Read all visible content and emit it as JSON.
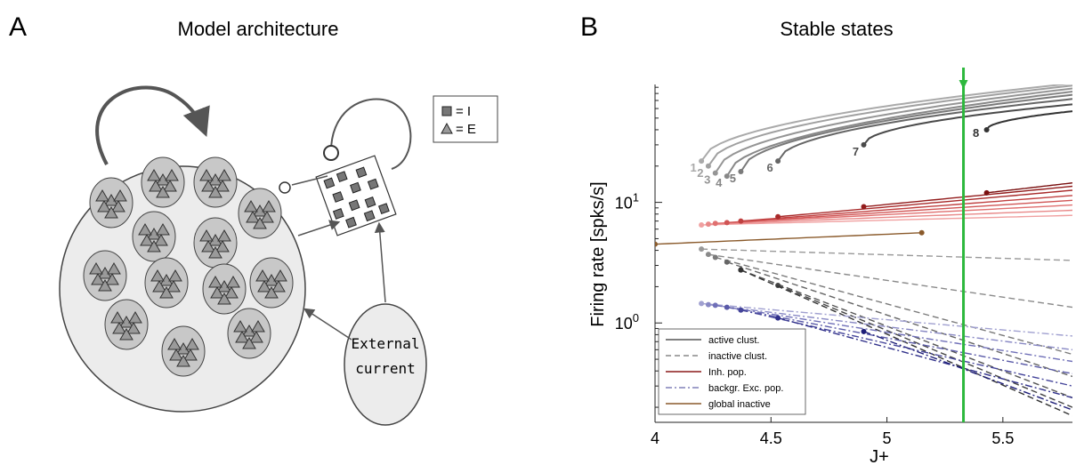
{
  "panel_a": {
    "letter": "A",
    "title": "Model architecture",
    "legend": {
      "inhibitory": "= I",
      "excitatory": "= E"
    },
    "external_label_line1": "External",
    "external_label_line2": "current"
  },
  "chart_data": {
    "type": "line",
    "panel_letter": "B",
    "title": "Stable states",
    "xlabel": "J+",
    "ylabel": "Firing rate [spks/s]",
    "xlim": [
      4,
      5.8
    ],
    "ylim": [
      0.15,
      95
    ],
    "yscale": "log",
    "x_ticks": [
      "4",
      "4.5",
      "5",
      "5.5"
    ],
    "y_ticks": [
      {
        "base": "10",
        "exp": "0"
      },
      {
        "base": "10",
        "exp": "1"
      }
    ],
    "marker_x": 5.33,
    "marker_color": "#2db83d",
    "legend_position": "bottom-left",
    "legend": [
      {
        "label": "active clust.",
        "style": "solid",
        "color": "#555555"
      },
      {
        "label": "inactive clust.",
        "style": "dashed",
        "color": "#888888"
      },
      {
        "label": "Inh. pop.",
        "style": "solid",
        "color": "#8b1a1a"
      },
      {
        "label": "backgr. Exc. pop.",
        "style": "dashdot",
        "color": "#8080b8"
      },
      {
        "label": "global inactive",
        "style": "solid",
        "color": "#8a5a2b"
      }
    ],
    "series": [
      {
        "label": "1",
        "group": "active",
        "color": "#aaaaaa",
        "start": [
          4.2,
          22
        ],
        "end": [
          5.8,
          97
        ]
      },
      {
        "label": "2",
        "group": "active",
        "color": "#a0a0a0",
        "start": [
          4.23,
          20
        ],
        "end": [
          5.8,
          93
        ]
      },
      {
        "label": "3",
        "group": "active",
        "color": "#959595",
        "start": [
          4.26,
          17.5
        ],
        "end": [
          5.8,
          88
        ]
      },
      {
        "label": "4",
        "group": "active",
        "color": "#888888",
        "start": [
          4.31,
          16.5
        ],
        "end": [
          5.8,
          83
        ]
      },
      {
        "label": "5",
        "group": "active",
        "color": "#7a7a7a",
        "start": [
          4.37,
          18
        ],
        "end": [
          5.8,
          78
        ]
      },
      {
        "label": "6",
        "group": "active",
        "color": "#666666",
        "start": [
          4.53,
          22
        ],
        "end": [
          5.8,
          72
        ]
      },
      {
        "label": "7",
        "group": "active",
        "color": "#4a4a4a",
        "start": [
          4.9,
          30
        ],
        "end": [
          5.8,
          65
        ]
      },
      {
        "label": "8",
        "group": "active",
        "color": "#333333",
        "start": [
          5.43,
          40
        ],
        "end": [
          5.8,
          57
        ]
      },
      {
        "group": "inh",
        "color": "#f0a0a0",
        "start": [
          4.2,
          6.5
        ],
        "end": [
          5.8,
          7.8
        ]
      },
      {
        "group": "inh",
        "color": "#e88888",
        "start": [
          4.23,
          6.6
        ],
        "end": [
          5.8,
          8.6
        ]
      },
      {
        "group": "inh",
        "color": "#e07070",
        "start": [
          4.26,
          6.7
        ],
        "end": [
          5.8,
          9.5
        ]
      },
      {
        "group": "inh",
        "color": "#d05555",
        "start": [
          4.31,
          6.8
        ],
        "end": [
          5.8,
          10.4
        ]
      },
      {
        "group": "inh",
        "color": "#c04040",
        "start": [
          4.37,
          7.0
        ],
        "end": [
          5.8,
          11.4
        ]
      },
      {
        "group": "inh",
        "color": "#a82a2a",
        "start": [
          4.53,
          7.6
        ],
        "end": [
          5.8,
          12.6
        ]
      },
      {
        "group": "inh",
        "color": "#921c1c",
        "start": [
          4.9,
          9.2
        ],
        "end": [
          5.8,
          13.6
        ]
      },
      {
        "group": "inh",
        "color": "#7a1010",
        "start": [
          5.43,
          12
        ],
        "end": [
          5.8,
          14.5
        ]
      },
      {
        "group": "global",
        "color": "#8a5a2b",
        "start": [
          4.0,
          4.5
        ],
        "end": [
          5.15,
          5.6
        ]
      },
      {
        "group": "inactive",
        "color": "#999999",
        "start": [
          4.2,
          4.1
        ],
        "end": [
          5.8,
          3.3
        ]
      },
      {
        "group": "inactive",
        "color": "#8a8a8a",
        "start": [
          4.23,
          3.7
        ],
        "end": [
          5.8,
          1.35
        ]
      },
      {
        "group": "inactive",
        "color": "#7a7a7a",
        "start": [
          4.26,
          3.5
        ],
        "end": [
          5.8,
          0.55
        ]
      },
      {
        "group": "inactive",
        "color": "#666666",
        "start": [
          4.31,
          3.2
        ],
        "end": [
          5.8,
          0.36
        ]
      },
      {
        "group": "inactive",
        "color": "#555555",
        "start": [
          4.37,
          2.75
        ],
        "end": [
          5.8,
          0.24
        ]
      },
      {
        "group": "inactive",
        "color": "#444444",
        "start": [
          4.53,
          2.05
        ],
        "end": [
          5.8,
          0.2
        ]
      },
      {
        "group": "inactive",
        "color": "#333333",
        "start": [
          4.37,
          2.75
        ],
        "end": [
          5.8,
          0.17
        ]
      },
      {
        "group": "backgr",
        "color": "#a0a0d0",
        "start": [
          4.2,
          1.45
        ],
        "end": [
          5.8,
          0.78
        ]
      },
      {
        "group": "backgr",
        "color": "#8888c4",
        "start": [
          4.23,
          1.42
        ],
        "end": [
          5.8,
          0.6
        ]
      },
      {
        "group": "backgr",
        "color": "#7070b8",
        "start": [
          4.26,
          1.4
        ],
        "end": [
          5.8,
          0.48
        ]
      },
      {
        "group": "backgr",
        "color": "#5a5aa8",
        "start": [
          4.31,
          1.35
        ],
        "end": [
          5.8,
          0.38
        ]
      },
      {
        "group": "backgr",
        "color": "#44449a",
        "start": [
          4.37,
          1.28
        ],
        "end": [
          5.8,
          0.3
        ]
      },
      {
        "group": "backgr",
        "color": "#30308a",
        "start": [
          4.53,
          1.1
        ],
        "end": [
          5.8,
          0.24
        ]
      },
      {
        "group": "backgr",
        "color": "#1e1e78",
        "start": [
          4.9,
          0.85
        ],
        "end": [
          5.8,
          0.19
        ]
      }
    ]
  }
}
